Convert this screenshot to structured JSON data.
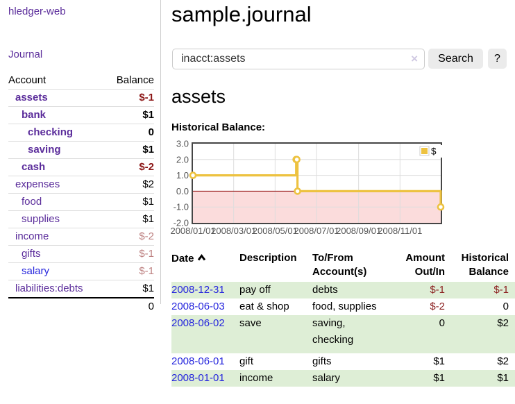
{
  "app": {
    "title": "hledger-web"
  },
  "sidebar": {
    "journal_label": "Journal",
    "table": {
      "account_header": "Account",
      "balance_header": "Balance"
    },
    "accounts": [
      {
        "name": "assets",
        "balance": "$-1"
      },
      {
        "name": "bank",
        "balance": "$1"
      },
      {
        "name": "checking",
        "balance": "0"
      },
      {
        "name": "saving",
        "balance": "$1"
      },
      {
        "name": "cash",
        "balance": "$-2"
      },
      {
        "name": "expenses",
        "balance": "$2"
      },
      {
        "name": "food",
        "balance": "$1"
      },
      {
        "name": "supplies",
        "balance": "$1"
      },
      {
        "name": "income",
        "balance": "$-2"
      },
      {
        "name": "gifts",
        "balance": "$-1"
      },
      {
        "name": "salary",
        "balance": "$-1"
      },
      {
        "name": "liabilities:debts",
        "balance": "$1"
      }
    ],
    "total": "0"
  },
  "header": {
    "title": "sample.journal"
  },
  "search": {
    "value": "inacct:assets",
    "clear_icon": "×",
    "button_label": "Search",
    "help_label": "?"
  },
  "account_page": {
    "title": "assets",
    "chart_label": "Historical Balance:"
  },
  "chart_data": {
    "type": "line",
    "title": "Historical Balance:",
    "step": true,
    "series": [
      {
        "name": "$",
        "color": "#EDC240",
        "points": [
          [
            "2008-01-01",
            1
          ],
          [
            "2008-06-01",
            2
          ],
          [
            "2008-06-02",
            2
          ],
          [
            "2008-06-03",
            0
          ],
          [
            "2008-12-31",
            -1
          ]
        ]
      }
    ],
    "xlim": [
      "2008-01-01",
      "2008-12-31"
    ],
    "ylim": [
      -2,
      3
    ],
    "yticks": [
      3.0,
      2.0,
      1.0,
      0.0,
      -1.0,
      -2.0
    ],
    "xticks": [
      "2008/01/01",
      "2008/03/01",
      "2008/05/01",
      "2008/07/01",
      "2008/09/01",
      "2008/11/01"
    ],
    "legend_position": "top-right",
    "grid": true,
    "colors": {
      "line": "#EDC240",
      "marker_fill": "#ffffff",
      "negative_region": "#fbdcdc",
      "zero_line": "#8b0000",
      "gridline": "#dddddd",
      "border": "#454545",
      "axis_text": "#545454"
    }
  },
  "register": {
    "headers": {
      "date": "Date",
      "description": "Description",
      "accounts": "To/From Account(s)",
      "amount": "Amount Out/In",
      "balance": "Historical Balance"
    },
    "rows": [
      {
        "date": "2008-12-31",
        "description": "pay off",
        "accounts": "debts",
        "amount": "$-1",
        "balance": "$-1"
      },
      {
        "date": "2008-06-03",
        "description": "eat & shop",
        "accounts": "food, supplies",
        "amount": "$-2",
        "balance": "0"
      },
      {
        "date": "2008-06-02",
        "description": "save",
        "accounts": "saving, checking",
        "amount": "0",
        "balance": "$2"
      },
      {
        "date": "2008-06-01",
        "description": "gift",
        "accounts": "gifts",
        "amount": "$1",
        "balance": "$2"
      },
      {
        "date": "2008-01-01",
        "description": "income",
        "accounts": "salary",
        "amount": "$1",
        "balance": "$1"
      }
    ]
  },
  "colors": {
    "link_purple": "#5b2d9b",
    "link_blue": "#2525dd",
    "negative_strong": "#8b1515",
    "negative_soft": "#bc7f7f",
    "zebra_green": "#deeed6",
    "button_gray": "#ebebeb"
  }
}
